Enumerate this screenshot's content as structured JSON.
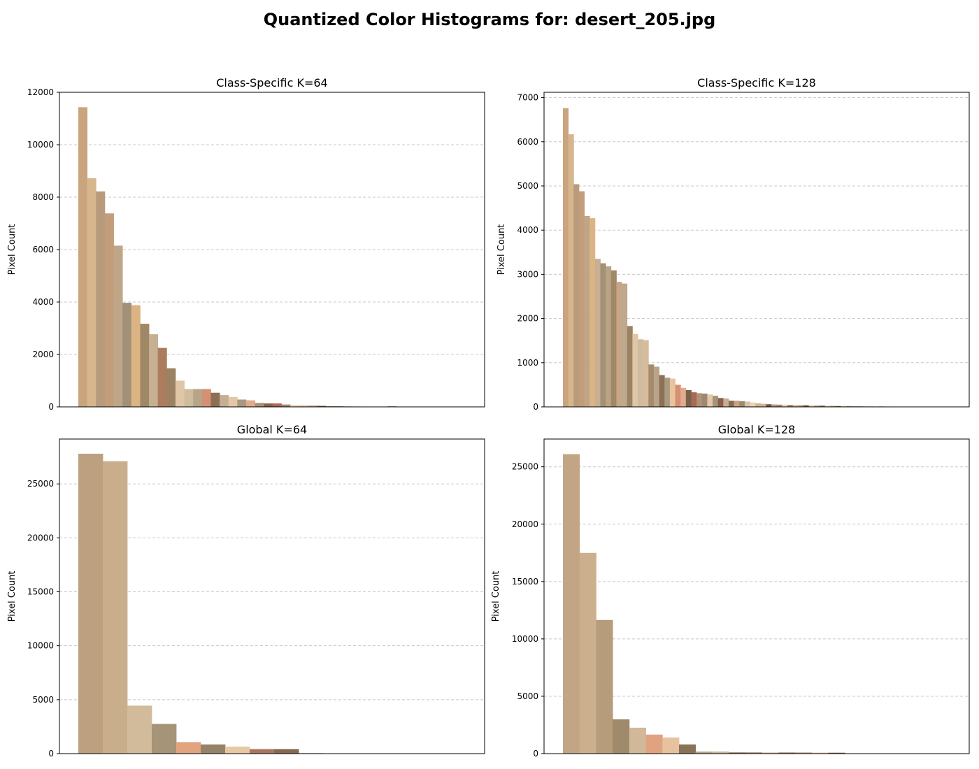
{
  "figure_title": "Quantized Color Histograms for: desert_205.jpg",
  "chart_data": [
    {
      "type": "bar",
      "title": "Class-Specific K=64",
      "ylabel": "Pixel Count",
      "ylim": [
        0,
        12000
      ],
      "yticks": [
        0,
        2000,
        4000,
        6000,
        8000,
        10000,
        12000
      ],
      "grid": true,
      "n_slots": 46,
      "values": [
        11430,
        8720,
        8220,
        7380,
        6150,
        3970,
        3880,
        3170,
        2770,
        2250,
        1470,
        1000,
        680,
        680,
        680,
        540,
        450,
        380,
        280,
        250,
        150,
        130,
        130,
        90,
        70,
        60,
        50,
        40,
        30,
        25,
        20,
        15,
        12,
        10,
        8,
        20,
        10,
        5
      ],
      "colors": [
        "#c9a47c",
        "#d7b68e",
        "#b79b7c",
        "#c39d7a",
        "#bfa689",
        "#a29176",
        "#dcb484",
        "#a08765",
        "#c6af92",
        "#ab7c5e",
        "#9b8262",
        "#e0c6a6",
        "#cfbc9e",
        "#b6a58b",
        "#d49074",
        "#8c6f55",
        "#c5af92",
        "#e3c7a7",
        "#a89a80",
        "#e3aa8d",
        "#a29478",
        "#8e5e4a",
        "#a96a54",
        "#9f8873",
        "#ecd1b2",
        "#d8c4a6",
        "#c7a184",
        "#7a6149",
        "#b19178",
        "#a58b6c",
        "#d1b597",
        "#e8d3b5",
        "#9a8a71",
        "#cbb592",
        "#d3b38f",
        "#6d5a45",
        "#dcc9ad",
        "#e8d2b4"
      ]
    },
    {
      "type": "bar",
      "title": "Class-Specific K=128",
      "ylabel": "Pixel Count",
      "ylim": [
        0,
        7120
      ],
      "yticks": [
        0,
        1000,
        2000,
        3000,
        4000,
        5000,
        6000,
        7000
      ],
      "grid": true,
      "n_slots": 76,
      "values": [
        6760,
        6170,
        5040,
        4880,
        4320,
        4270,
        3350,
        3250,
        3180,
        3090,
        2830,
        2790,
        1830,
        1650,
        1530,
        1510,
        960,
        910,
        720,
        660,
        640,
        500,
        430,
        380,
        330,
        310,
        300,
        280,
        250,
        200,
        190,
        140,
        140,
        130,
        120,
        100,
        80,
        70,
        60,
        55,
        50,
        50,
        45,
        40,
        40,
        35,
        35,
        30,
        30,
        25,
        25,
        20,
        20,
        15,
        15,
        12,
        12,
        10,
        10,
        10,
        8
      ],
      "colors": [
        "#c9a47c",
        "#d7b68e",
        "#b79b7c",
        "#c39d7a",
        "#bfa689",
        "#dcb484",
        "#c6af92",
        "#a29176",
        "#b8a288",
        "#a08765",
        "#c8a587",
        "#bda98d",
        "#9b8262",
        "#e0c6a6",
        "#cfbc9e",
        "#d6bc9d",
        "#a58b6c",
        "#b6a58b",
        "#8c6f55",
        "#a89a80",
        "#e8c49c",
        "#d49074",
        "#e3aa8d",
        "#7a6149",
        "#a96a54",
        "#b19178",
        "#9f8873",
        "#e3c7a7",
        "#a29478",
        "#8e5e4a",
        "#c5af92",
        "#8d6c53",
        "#c7a184",
        "#9a8a71",
        "#d8c4a6",
        "#ecd1b2",
        "#cbb592",
        "#d3b38f",
        "#6d5a45",
        "#b79c7e",
        "#a38a6e",
        "#e8d3b5",
        "#9e876f",
        "#d1b597",
        "#c0a184",
        "#6b5845",
        "#e4cdaf",
        "#b29a7e",
        "#8a7560",
        "#dcc9ad",
        "#caa783",
        "#7d6a55",
        "#efd9bb",
        "#a5927a",
        "#c8b291",
        "#917b63",
        "#d9bf9f",
        "#b5a188",
        "#e6cfae",
        "#8f7a65",
        "#c4ad8e"
      ]
    },
    {
      "type": "bar",
      "title": "Global K=64",
      "ylabel": "Pixel Count",
      "ylim": [
        0,
        29160
      ],
      "yticks": [
        0,
        5000,
        10000,
        15000,
        20000,
        25000
      ],
      "grid": true,
      "n_slots": 16.6,
      "values": [
        27800,
        27100,
        4450,
        2750,
        1070,
        850,
        650,
        420,
        420,
        40
      ],
      "colors": [
        "#bca07f",
        "#c8ae8b",
        "#d2bb9b",
        "#a69478",
        "#e2a47f",
        "#958369",
        "#e9c8a5",
        "#ad7560",
        "#85684f",
        "#7d6a57"
      ]
    },
    {
      "type": "bar",
      "title": "Global K=128",
      "ylabel": "Pixel Count",
      "ylim": [
        0,
        27420
      ],
      "yticks": [
        0,
        5000,
        10000,
        15000,
        20000,
        25000
      ],
      "grid": true,
      "n_slots": 24.5,
      "values": [
        26100,
        17500,
        11650,
        2990,
        2260,
        1660,
        1410,
        800,
        180,
        180,
        110,
        110,
        100,
        100,
        100,
        90,
        80
      ],
      "colors": [
        "#c1a584",
        "#ccb08e",
        "#b79c7c",
        "#a08a6c",
        "#d0b899",
        "#e0a37f",
        "#e7c29e",
        "#8a7259",
        "#b7a58c",
        "#c9b493",
        "#967a63",
        "#a38c71",
        "#d3b99a",
        "#8e7d66",
        "#b8957a",
        "#e2c6a5",
        "#7c6551"
      ]
    }
  ]
}
